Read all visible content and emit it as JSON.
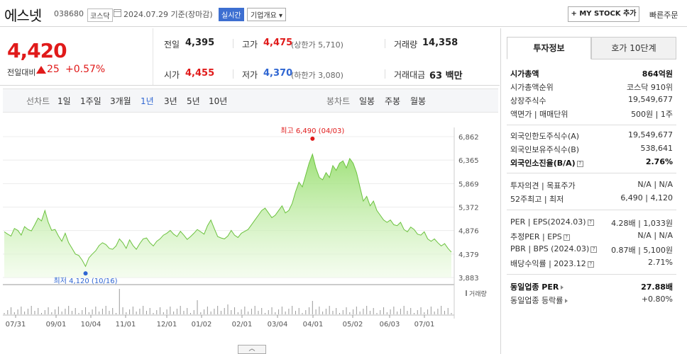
{
  "header": {
    "stock_name": "에스넷",
    "stock_code": "038680",
    "market": "코스닥",
    "base_date": "2024.07.29 기준(장마감)",
    "realtime": "실시간",
    "company_overview": "기업개요 ▾",
    "my_stock": "+ MY STOCK 추가",
    "quick_order": "빠른주문"
  },
  "price": {
    "current": "4,420",
    "change_label": "전일대비",
    "change": "25",
    "change_rate": "+0.57%"
  },
  "quote": {
    "prev_label": "전일",
    "prev": "4,395",
    "high_label": "고가",
    "high": "4,475",
    "upper_limit": "(상한가 5,710)",
    "volume_label": "거래량",
    "volume": "14,358",
    "open_label": "시가",
    "open": "4,455",
    "low_label": "저가",
    "low": "4,370",
    "lower_limit": "(하한가 3,080)",
    "amount_label": "거래대금",
    "amount": "63 백만"
  },
  "periods": {
    "line_label": "선차트",
    "items": [
      "1일",
      "1주일",
      "3개월",
      "1년",
      "3년",
      "5년",
      "10년"
    ],
    "active": "1년",
    "candle_label": "봉차트",
    "candle_items": [
      "일봉",
      "주봉",
      "월봉"
    ]
  },
  "chart_data": {
    "type": "area",
    "y_ticks": [
      "6,862",
      "6,365",
      "5,869",
      "5,372",
      "4,876",
      "4,379",
      "3,883"
    ],
    "ylim": [
      3883,
      6862
    ],
    "x_ticks": [
      "07/31",
      "09/01",
      "10/04",
      "11/01",
      "12/01",
      "01/02",
      "02/01",
      "03/04",
      "04/01",
      "05/02",
      "06/03",
      "07/01"
    ],
    "max_label": "최고 6,490 (04/03)",
    "min_label": "최저 4,120 (10/16)",
    "volume_label": "거래량",
    "values": [
      4850,
      4800,
      4760,
      4920,
      4880,
      4780,
      4960,
      4900,
      4870,
      5000,
      5140,
      5080,
      5300,
      5050,
      4880,
      4900,
      4760,
      4650,
      4820,
      4620,
      4500,
      4380,
      4350,
      4250,
      4120,
      4300,
      4380,
      4450,
      4560,
      4620,
      4580,
      4500,
      4480,
      4550,
      4700,
      4620,
      4500,
      4680,
      4560,
      4480,
      4600,
      4700,
      4720,
      4620,
      4550,
      4650,
      4700,
      4780,
      4820,
      4880,
      4800,
      4750,
      4860,
      4780,
      4690,
      4750,
      4820,
      4900,
      4850,
      4800,
      4980,
      5100,
      4920,
      4750,
      4720,
      4700,
      4760,
      4880,
      4780,
      4730,
      4820,
      4860,
      4900,
      5000,
      5100,
      5200,
      5300,
      5350,
      5250,
      5150,
      5200,
      5300,
      5400,
      5250,
      5300,
      5450,
      5700,
      5900,
      5800,
      6050,
      6300,
      6490,
      6200,
      6000,
      5950,
      6100,
      6000,
      6250,
      6150,
      6300,
      6350,
      6200,
      6400,
      6300,
      6100,
      5800,
      5500,
      5600,
      5400,
      5500,
      5300,
      5200,
      5100,
      5050,
      5100,
      5000,
      4980,
      5050,
      4900,
      4850,
      4950,
      4900,
      4800,
      4780,
      4850,
      4700,
      4650,
      4700,
      4620,
      4550,
      4600,
      4500,
      4420
    ]
  },
  "panel": {
    "tab_invest": "투자정보",
    "tab_hoga": "호가 10단계",
    "g1": [
      {
        "k": "시가총액",
        "v": "864억원",
        "bold": true
      },
      {
        "k": "시가총액순위",
        "v": "코스닥 910위"
      },
      {
        "k": "상장주식수",
        "v": "19,549,677"
      },
      {
        "k": "액면가 | 매매단위",
        "v": "500원 | 1주"
      }
    ],
    "g2": [
      {
        "k": "외국인한도주식수(A)",
        "v": "19,549,677"
      },
      {
        "k": "외국인보유주식수(B)",
        "v": "538,641"
      },
      {
        "k": "외국인소진율(B/A)",
        "v": "2.76%",
        "bold": true
      }
    ],
    "g3": [
      {
        "k": "투자의견 | 목표주가",
        "v": "N/A | N/A"
      },
      {
        "k": "52주최고 | 최저",
        "v": "6,490 | 4,120"
      }
    ],
    "g4": [
      {
        "k": "PER | EPS(2024.03)",
        "v": "4.28배 | 1,033원"
      },
      {
        "k": "추정PER | EPS",
        "v": "N/A | N/A"
      },
      {
        "k": "PBR | BPS (2024.03)",
        "v": "0.87배 | 5,100원"
      },
      {
        "k": "배당수익률 | 2023.12",
        "v": "2.71%"
      }
    ],
    "g5": [
      {
        "k": "동일업종 PER",
        "v": "27.88배",
        "bold": true
      },
      {
        "k": "동일업종 등락률",
        "v": "+0.80%",
        "red": true
      }
    ]
  },
  "collapse_label": "︿"
}
